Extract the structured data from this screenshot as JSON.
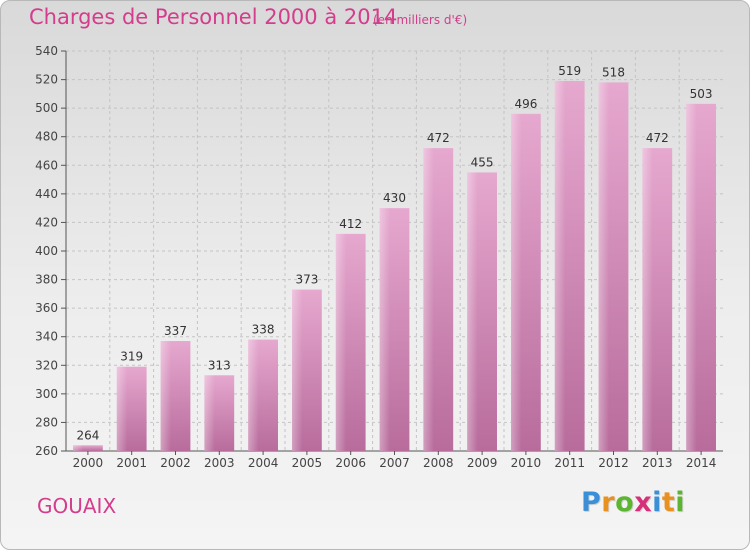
{
  "chart_data": {
    "type": "bar",
    "title": "Charges de Personnel 2000 à 2014",
    "subtitle": "(en milliers d'€)",
    "categories": [
      "2000",
      "2001",
      "2002",
      "2003",
      "2004",
      "2005",
      "2006",
      "2007",
      "2008",
      "2009",
      "2010",
      "2011",
      "2012",
      "2013",
      "2014"
    ],
    "values": [
      264,
      319,
      337,
      313,
      338,
      373,
      412,
      430,
      472,
      455,
      496,
      519,
      518,
      472,
      503
    ],
    "ylim": [
      260,
      540
    ],
    "yticks": [
      260,
      280,
      300,
      320,
      340,
      360,
      380,
      400,
      420,
      440,
      460,
      480,
      500,
      520,
      540
    ],
    "grid": true,
    "xlabel": "",
    "ylabel": "",
    "bar_color": "#d98bb8"
  },
  "footer": {
    "place": "GOUAIX",
    "logo": [
      "P",
      "r",
      "o",
      "x",
      "i",
      "t",
      "i"
    ],
    "logo_colors": [
      "#3a8fd6",
      "#e8911f",
      "#5cb531",
      "#d6307a",
      "#3a8fd6",
      "#e8911f",
      "#5cb531"
    ]
  }
}
